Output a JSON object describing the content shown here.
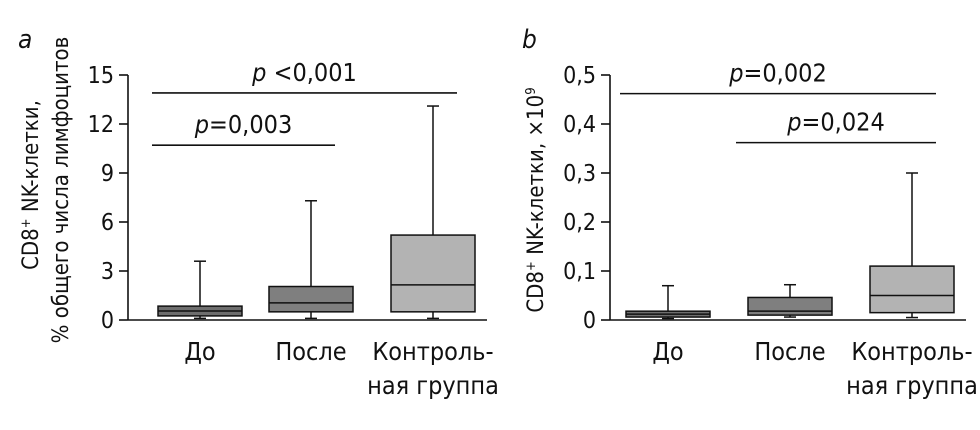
{
  "chart_data": [
    {
      "type": "boxplot",
      "panel_label": "a",
      "ylabel_line1_main": "CD8",
      "ylabel_line1_sup": "+",
      "ylabel_line1_rest": " NK-клетки,",
      "ylabel_line2": "% общего числа лимфоцитов",
      "ylim": [
        0,
        15
      ],
      "yticks": [
        "0",
        "3",
        "6",
        "9",
        "12",
        "15"
      ],
      "ytick_values": [
        0,
        3,
        6,
        9,
        12,
        15
      ],
      "categories": [
        {
          "line1": "До",
          "line2": ""
        },
        {
          "line1": "После",
          "line2": ""
        },
        {
          "line1": "Контроль-",
          "line2": "ная группа"
        }
      ],
      "boxes": [
        {
          "min": 0.1,
          "q1": 0.25,
          "median": 0.55,
          "q3": 0.85,
          "max": 3.6,
          "color": "#6e6e6e"
        },
        {
          "min": 0.1,
          "q1": 0.5,
          "median": 1.05,
          "q3": 2.05,
          "max": 7.3,
          "color": "#7f7f7f"
        },
        {
          "min": 0.1,
          "q1": 0.5,
          "median": 2.15,
          "q3": 5.2,
          "max": 13.1,
          "color": "#b3b3b3"
        }
      ],
      "significance": [
        {
          "from": 0,
          "to": 1,
          "y": 10.7,
          "p_letter": "p",
          "p_rest": "=0,003"
        },
        {
          "from": 0,
          "to": 2,
          "y": 13.9,
          "p_letter": "p",
          "p_rest": " <0,001"
        }
      ]
    },
    {
      "type": "boxplot",
      "panel_label": "b",
      "ylabel_line1_main": "CD8",
      "ylabel_line1_sup": "+",
      "ylabel_line1_rest": " NK-клетки, ×10",
      "ylabel_line1_sup2": "9",
      "ylim": [
        0,
        0.5
      ],
      "yticks": [
        "0",
        "0,1",
        "0,2",
        "0,3",
        "0,4",
        "0,5"
      ],
      "ytick_values": [
        0,
        0.1,
        0.2,
        0.3,
        0.4,
        0.5
      ],
      "categories": [
        {
          "line1": "До",
          "line2": ""
        },
        {
          "line1": "После",
          "line2": ""
        },
        {
          "line1": "Контроль-",
          "line2": "ная группа"
        }
      ],
      "boxes": [
        {
          "min": 0.003,
          "q1": 0.006,
          "median": 0.012,
          "q3": 0.018,
          "max": 0.07,
          "color": "#6e6e6e"
        },
        {
          "min": 0.006,
          "q1": 0.01,
          "median": 0.018,
          "q3": 0.046,
          "max": 0.072,
          "color": "#7f7f7f"
        },
        {
          "min": 0.005,
          "q1": 0.015,
          "median": 0.05,
          "q3": 0.11,
          "max": 0.3,
          "color": "#b3b3b3"
        }
      ],
      "significance": [
        {
          "from": 0,
          "to": 2,
          "y": 0.462,
          "p_letter": "p",
          "p_rest": "=0,002"
        },
        {
          "from": 1,
          "to": 2,
          "y": 0.362,
          "p_letter": "p",
          "p_rest": "=0,024"
        }
      ]
    }
  ]
}
